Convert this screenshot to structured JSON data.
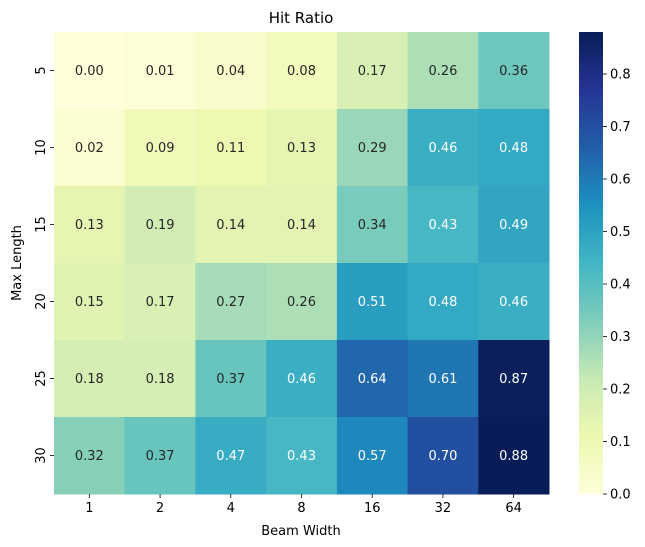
{
  "chart_data": {
    "type": "heatmap",
    "title": "Hit Ratio",
    "xlabel": "Beam Width",
    "ylabel": "Max Length",
    "x_categories": [
      "1",
      "2",
      "4",
      "8",
      "16",
      "32",
      "64"
    ],
    "y_categories": [
      "5",
      "10",
      "15",
      "20",
      "25",
      "30"
    ],
    "values": [
      [
        0.0,
        0.01,
        0.04,
        0.08,
        0.17,
        0.26,
        0.36
      ],
      [
        0.02,
        0.09,
        0.11,
        0.13,
        0.29,
        0.46,
        0.48
      ],
      [
        0.13,
        0.19,
        0.14,
        0.14,
        0.34,
        0.43,
        0.49
      ],
      [
        0.15,
        0.17,
        0.27,
        0.26,
        0.51,
        0.48,
        0.46
      ],
      [
        0.18,
        0.18,
        0.37,
        0.46,
        0.64,
        0.61,
        0.87
      ],
      [
        0.32,
        0.37,
        0.47,
        0.43,
        0.57,
        0.7,
        0.88
      ]
    ],
    "vmin": 0.0,
    "vmax": 0.88,
    "colormap": "YlGnBu",
    "colorbar_ticks": [
      "0.0",
      "0.1",
      "0.2",
      "0.3",
      "0.4",
      "0.5",
      "0.6",
      "0.7",
      "0.8"
    ],
    "annotation_colors": {
      "dark": "#262626",
      "light": "#ffffff"
    }
  }
}
